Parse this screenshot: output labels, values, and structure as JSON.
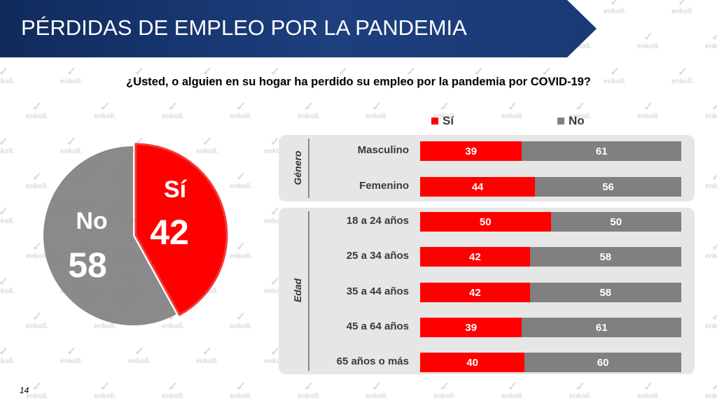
{
  "banner": {
    "title": "PÉRDIDAS DE EMPLEO POR LA PANDEMIA"
  },
  "question": "¿Usted, o alguien en su hogar ha perdido su empleo por la pandemia por COVID-19?",
  "watermark_text": "enkoll.",
  "page_number": "14",
  "colors": {
    "si": "#ff0000",
    "no": "#808080",
    "banner": "#1a3a74",
    "panel": "#e6e6e6"
  },
  "chart_data": [
    {
      "type": "pie",
      "slices": [
        {
          "label": "Sí",
          "value": 42,
          "color": "#ff0000"
        },
        {
          "label": "No",
          "value": 58,
          "color": "#8c8c8c"
        }
      ]
    },
    {
      "type": "bar",
      "orientation": "horizontal",
      "stacked": true,
      "legend": {
        "position": "top",
        "items": [
          "Sí",
          "No"
        ]
      },
      "xlim": [
        0,
        100
      ],
      "groups": [
        {
          "name": "Género",
          "categories": [
            "Masculino",
            "Femenino"
          ]
        },
        {
          "name": "Edad",
          "categories": [
            "18 a 24 años",
            "25 a 34 años",
            "35 a 44 años",
            "45 a 64 años",
            "65 años o más"
          ]
        }
      ],
      "categories": [
        "Masculino",
        "Femenino",
        "18 a 24 años",
        "25 a 34 años",
        "35 a 44 años",
        "45 a 64 años",
        "65 años o más"
      ],
      "series": [
        {
          "name": "Sí",
          "values": [
            39,
            44,
            50,
            42,
            42,
            39,
            40
          ],
          "color": "#ff0000"
        },
        {
          "name": "No",
          "values": [
            61,
            56,
            50,
            58,
            58,
            61,
            60
          ],
          "color": "#808080"
        }
      ]
    }
  ]
}
